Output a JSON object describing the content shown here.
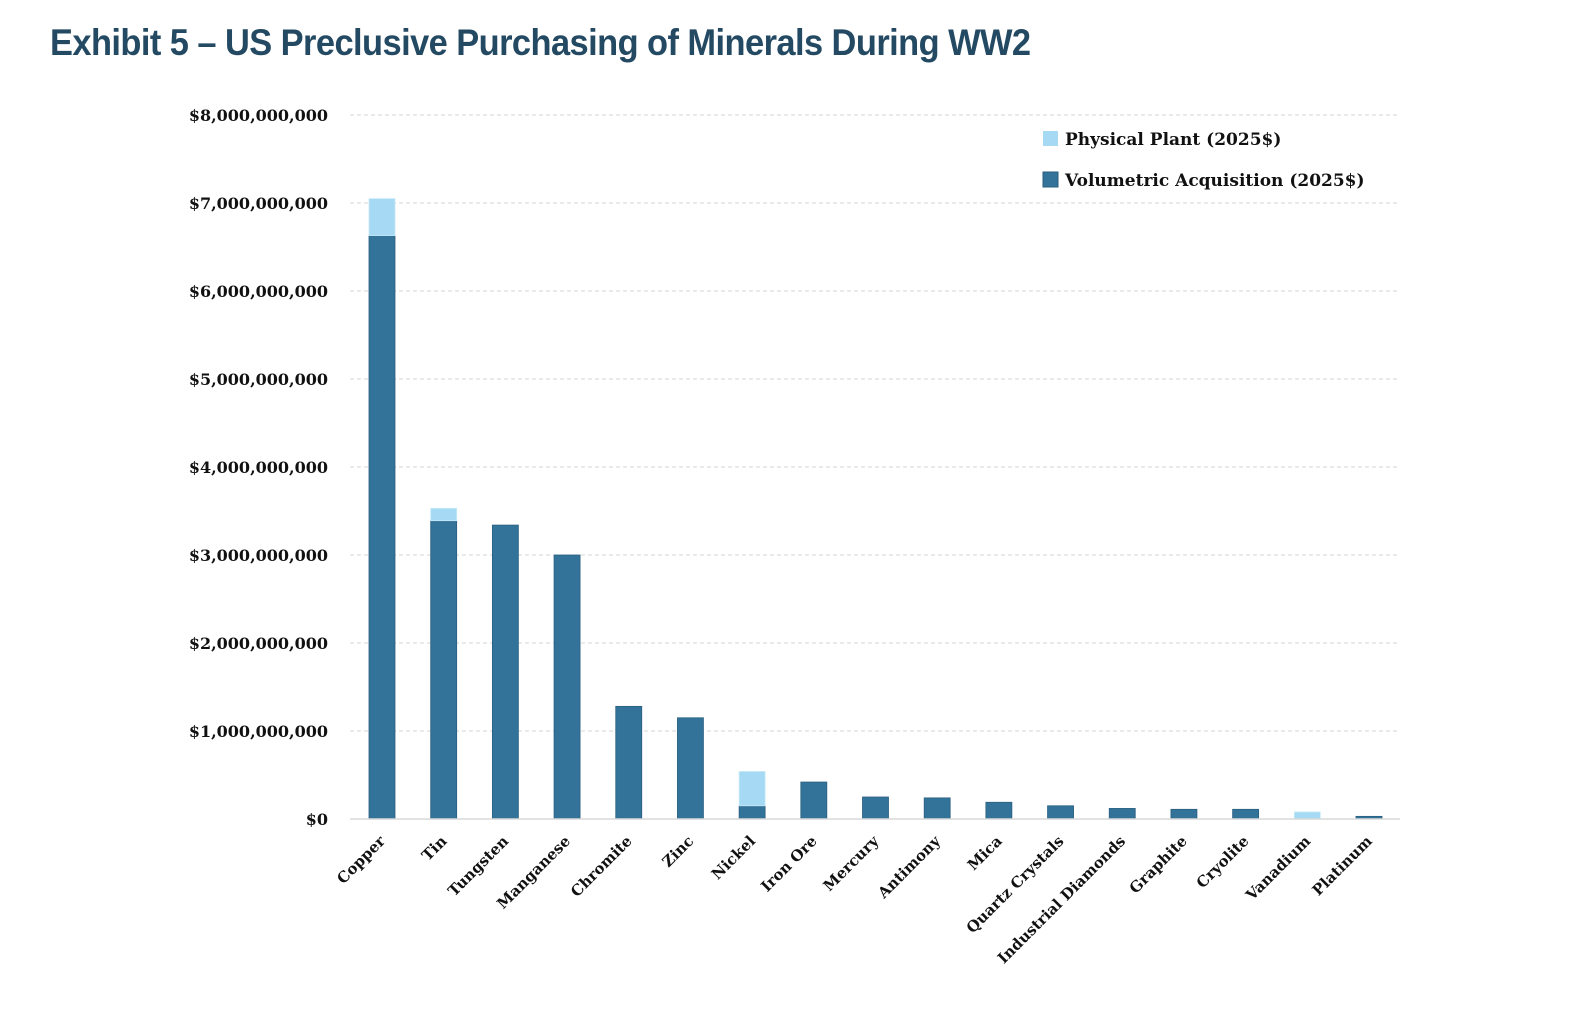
{
  "title": "Exhibit 5 – US Preclusive Purchasing of Minerals During WW2",
  "colors": {
    "title": "#244a63",
    "volumetric": "#337399",
    "physical": "#a6daf4",
    "grid": "#d4d4d4"
  },
  "chart_data": {
    "type": "bar",
    "stacked": true,
    "title": "Exhibit 5 – US Preclusive Purchasing of Minerals During WW2",
    "xlabel": "",
    "ylabel": "",
    "ylim": [
      0,
      8000000000
    ],
    "yticks": [
      0,
      1000000000,
      2000000000,
      3000000000,
      4000000000,
      5000000000,
      6000000000,
      7000000000,
      8000000000
    ],
    "ytick_labels": [
      "$0",
      "$1,000,000,000",
      "$2,000,000,000",
      "$3,000,000,000",
      "$4,000,000,000",
      "$5,000,000,000",
      "$6,000,000,000",
      "$7,000,000,000",
      "$8,000,000,000"
    ],
    "grid": true,
    "legend_position": "top-right",
    "categories": [
      "Copper",
      "Tin",
      "Tungsten",
      "Manganese",
      "Chromite",
      "Zinc",
      "Nickel",
      "Iron Ore",
      "Mercury",
      "Antimony",
      "Mica",
      "Quartz Crystals",
      "Industrial Diamonds",
      "Graphite",
      "Cryolite",
      "Vanadium",
      "Platinum"
    ],
    "series": [
      {
        "name": "Volumetric Acquisition (2025$)",
        "color": "#337399",
        "values": [
          6630000000,
          3390000000,
          3340000000,
          3000000000,
          1280000000,
          1150000000,
          150000000,
          420000000,
          250000000,
          240000000,
          190000000,
          150000000,
          120000000,
          110000000,
          110000000,
          0,
          30000000
        ]
      },
      {
        "name": "Physical Plant (2025$)",
        "color": "#a6daf4",
        "values": [
          420000000,
          140000000,
          0,
          0,
          0,
          0,
          390000000,
          0,
          0,
          0,
          0,
          0,
          0,
          0,
          0,
          80000000,
          0
        ]
      }
    ],
    "legend": [
      "Physical Plant (2025$)",
      "Volumetric Acquisition (2025$)"
    ]
  }
}
